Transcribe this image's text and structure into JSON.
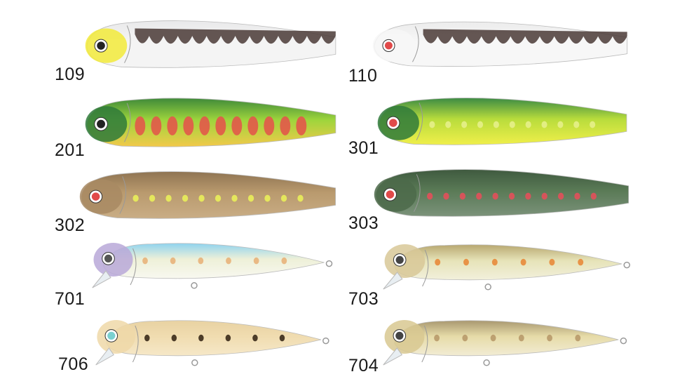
{
  "lures": [
    {
      "code": "109",
      "body": "#f4f4f4",
      "back": "#e9e9ea",
      "head": "#f2ea3a",
      "spots": "",
      "scale": "#4a3a36",
      "eye": "#222",
      "type": "minnow-flat"
    },
    {
      "code": "110",
      "body": "#f7f7f7",
      "back": "#ececec",
      "head": "#f7f7f7",
      "spots": "",
      "scale": "#4a3a36",
      "eye": "#e14a4a",
      "type": "minnow-flat"
    },
    {
      "code": "201",
      "body": "#9ed53c",
      "back": "#3f8a3a",
      "head": "#2f7a3a",
      "spots": "#e2584a",
      "belly": "#f3c94a",
      "eye": "#222",
      "type": "minnow-flat"
    },
    {
      "code": "301",
      "body": "#b8dc3c",
      "back": "#3c8b44",
      "head": "#2f7a3a",
      "spots": "#e6f08a",
      "belly": "#f0ef4a",
      "eye": "#e14a4a",
      "type": "minnow-flat"
    },
    {
      "code": "302",
      "body": "#b99a6e",
      "back": "#8f7452",
      "head": "#a88a63",
      "spots": "#e9ee5a",
      "belly": "#c9ad85",
      "eye": "#e14a4a",
      "type": "minnow-flat"
    },
    {
      "code": "303",
      "body": "#5a7a56",
      "back": "#3f5a3f",
      "head": "#4c6a4a",
      "spots": "#e2505a",
      "belly": "#7b927a",
      "eye": "#e14a4a",
      "type": "minnow-flat"
    },
    {
      "code": "701",
      "body": "#eef0d8",
      "back": "#8fd3ef",
      "head": "#b9a8d8",
      "spots": "#e8b27a",
      "belly": "#f8f8f0",
      "eye": "#555",
      "type": "jerkbait"
    },
    {
      "code": "703",
      "body": "#e6e3b8",
      "back": "#b8a870",
      "head": "#d8c898",
      "spots": "#e88a3a",
      "belly": "#f2f0dc",
      "eye": "#444",
      "type": "jerkbait"
    },
    {
      "code": "706",
      "body": "#f0dcb0",
      "back": "#e8d2a2",
      "head": "#eed8a8",
      "spots": "#3a2a1a",
      "belly": "#f6e8c8",
      "eye": "#7ad0d0",
      "type": "jerkbait"
    },
    {
      "code": "704",
      "body": "#e6dba8",
      "back": "#a99870",
      "head": "#d8c890",
      "spots": "#b89a6a",
      "belly": "#f2ecd4",
      "eye": "#444",
      "type": "jerkbait"
    }
  ]
}
